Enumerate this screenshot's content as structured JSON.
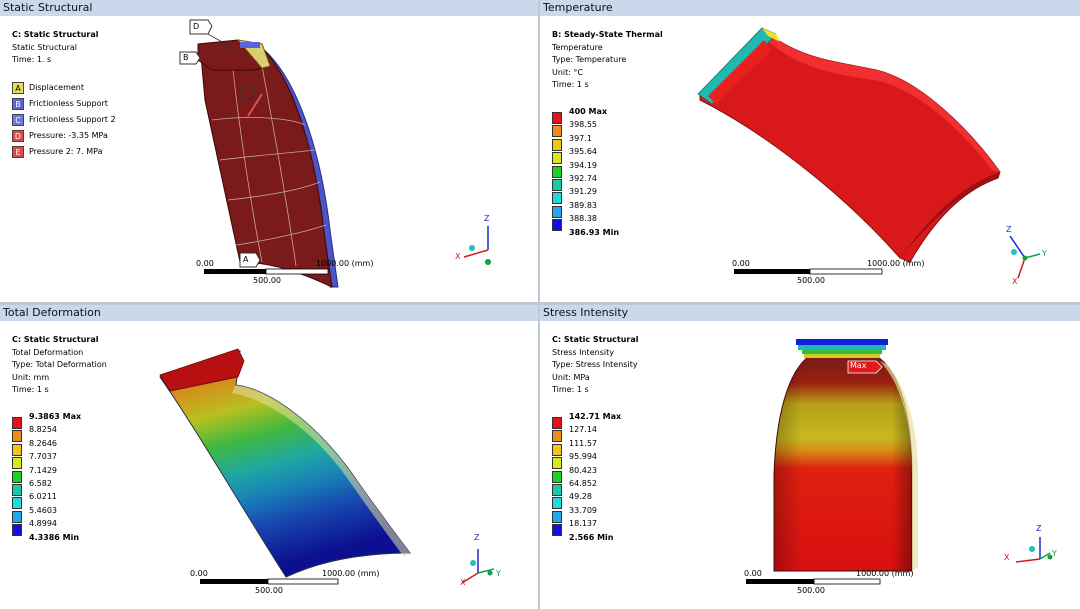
{
  "panes": {
    "p1": {
      "title": "Static Structural",
      "info": [
        "C: Static Structural",
        "Static Structural",
        "Time: 1. s"
      ],
      "bcs": [
        {
          "key": "A",
          "label": "Displacement",
          "color": "#e8e05a"
        },
        {
          "key": "B",
          "label": "Frictionless Support",
          "color": "#5a64d8"
        },
        {
          "key": "C",
          "label": "Frictionless Support 2",
          "color": "#6a78e0"
        },
        {
          "key": "D",
          "label": "Pressure: -3.35 MPa",
          "color": "#e04848"
        },
        {
          "key": "E",
          "label": "Pressure 2: 7. MPa",
          "color": "#e04848"
        }
      ],
      "callouts": {
        "a": "A",
        "b": "B",
        "d": "D"
      },
      "scale": {
        "zero": "0.00",
        "mid": "500.00",
        "end": "1000.00 (mm)"
      },
      "triad": {
        "z": "Z",
        "x": "X"
      }
    },
    "p2": {
      "title": "Temperature",
      "info": [
        "B: Steady-State Thermal",
        "Temperature",
        "Type: Temperature",
        "Unit: °C",
        "Time: 1 s"
      ],
      "legend": [
        "400 Max",
        "398.55",
        "397.1",
        "395.64",
        "394.19",
        "392.74",
        "391.29",
        "389.83",
        "388.38",
        "386.93 Min"
      ],
      "scale": {
        "zero": "0.00",
        "mid": "500.00",
        "end": "1000.00 (mm)"
      },
      "triad": {
        "z": "Z",
        "x": "X",
        "y": "Y"
      }
    },
    "p3": {
      "title": "Total Deformation",
      "info": [
        "C: Static Structural",
        "Total Deformation",
        "Type: Total Deformation",
        "Unit: mm",
        "Time: 1 s"
      ],
      "legend": [
        "9.3863 Max",
        "8.8254",
        "8.2646",
        "7.7037",
        "7.1429",
        "6.582",
        "6.0211",
        "5.4603",
        "4.8994",
        "4.3386 Min"
      ],
      "scale": {
        "zero": "0.00",
        "mid": "500.00",
        "end": "1000.00 (mm)"
      },
      "triad": {
        "z": "Z",
        "x": "X",
        "y": "Y"
      }
    },
    "p4": {
      "title": "Stress Intensity",
      "info": [
        "C: Static Structural",
        "Stress Intensity",
        "Type: Stress Intensity",
        "Unit: MPa",
        "Time: 1 s"
      ],
      "legend": [
        "142.71 Max",
        "127.14",
        "111.57",
        "95.994",
        "80.423",
        "64.852",
        "49.28",
        "33.709",
        "18.137",
        "2.566 Min"
      ],
      "max_tag": "Max",
      "scale": {
        "zero": "0.00",
        "mid": "500.00",
        "end": "1000.00 (mm)"
      },
      "triad": {
        "z": "Z",
        "x": "X",
        "y": "Y"
      }
    }
  },
  "legend_colors": [
    "#e8101a",
    "#f08c1a",
    "#f0c81a",
    "#d8e81a",
    "#20d020",
    "#20c8a0",
    "#20d8e0",
    "#20a8e8",
    "#1860e8",
    "#1010e0"
  ]
}
